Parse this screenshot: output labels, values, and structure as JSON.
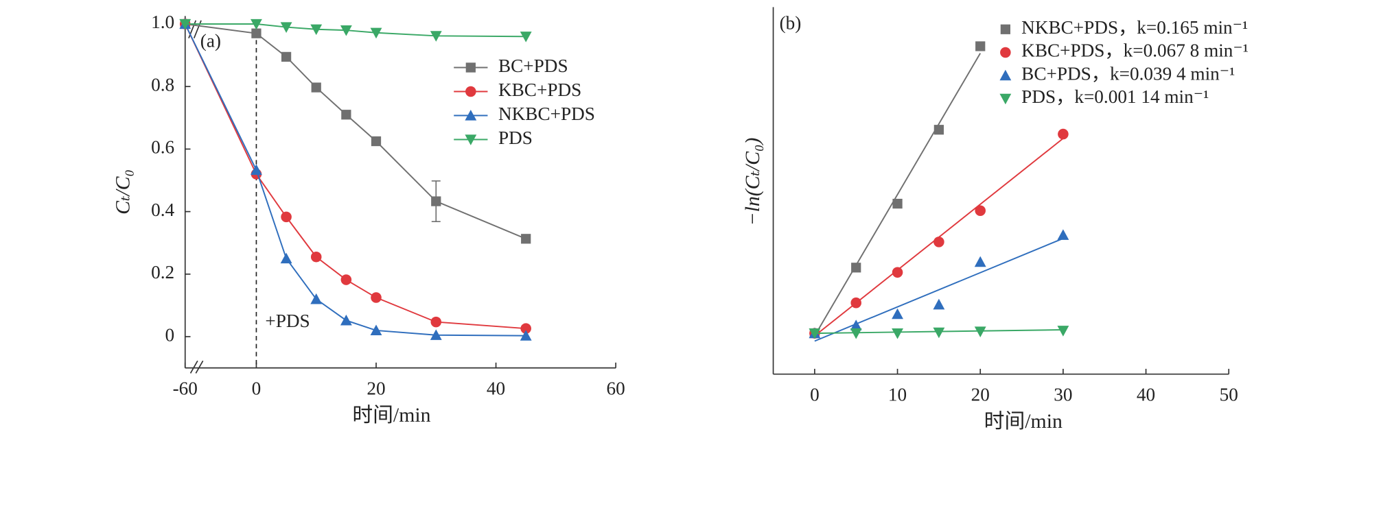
{
  "chart_data": [
    {
      "type": "line",
      "x_axis_label": "时间/min",
      "y_axis_label": "Cₜ/C₀",
      "annotations": [
        "(a)",
        "+PDS"
      ],
      "reference_line_x": 0,
      "x_axis_break": true,
      "xlim": [
        -60,
        60
      ],
      "xticks": [
        -60,
        0,
        20,
        40,
        60
      ],
      "ylim": [
        -0.1,
        1.0
      ],
      "yticks": [
        0,
        0.2,
        0.4,
        0.6,
        0.8,
        {
          "value": 1.0,
          "label": "1.0"
        }
      ],
      "x": [
        -60,
        0,
        5,
        10,
        15,
        20,
        30,
        45
      ],
      "series": [
        {
          "name": "BC+PDS",
          "color": "#707070",
          "marker": "square",
          "values": [
            1.0,
            0.97,
            0.895,
            0.797,
            0.71,
            0.625,
            0.433,
            0.313
          ],
          "errors": [
            null,
            null,
            null,
            null,
            null,
            null,
            0.065,
            null
          ]
        },
        {
          "name": "KBC+PDS",
          "color": "#e0393e",
          "marker": "circle",
          "values": [
            1.0,
            0.52,
            0.383,
            0.255,
            0.182,
            0.125,
            0.047,
            0.026
          ]
        },
        {
          "name": "NKBC+PDS",
          "color": "#2f6ebd",
          "marker": "triangle-up",
          "values": [
            1.0,
            0.533,
            0.25,
            0.12,
            0.052,
            0.02,
            0.005,
            0.003
          ]
        },
        {
          "name": "PDS",
          "color": "#3aa866",
          "marker": "triangle-down",
          "values": [
            1.0,
            1.0,
            0.99,
            0.983,
            0.98,
            0.972,
            0.962,
            0.96
          ]
        }
      ]
    },
    {
      "type": "scatter",
      "x_axis_label": "时间/min",
      "y_axis_label": "−ln(Cₜ/C₀)",
      "annotations": [
        "(b)"
      ],
      "xlim": [
        -5,
        50
      ],
      "xticks": [
        0,
        10,
        20,
        30,
        40,
        50
      ],
      "ylim": [
        -0.47,
        3.75
      ],
      "series": [
        {
          "name": "NKBC+PDS，k=0.165 min⁻¹",
          "color": "#707070",
          "marker": "square",
          "x": [
            0,
            5,
            10,
            15,
            20
          ],
          "values": [
            0,
            0.755,
            1.49,
            2.34,
            3.3
          ],
          "fit": {
            "x": [
              0,
              20
            ],
            "values": [
              -0.03,
              3.22
            ]
          }
        },
        {
          "name": "KBC+PDS，k=0.067 8 min⁻¹",
          "color": "#e0393e",
          "marker": "circle",
          "x": [
            0,
            5,
            10,
            15,
            20,
            30
          ],
          "values": [
            0,
            0.35,
            0.7,
            1.05,
            1.41,
            2.29
          ],
          "fit": {
            "x": [
              0,
              30
            ],
            "values": [
              -0.03,
              2.24
            ]
          }
        },
        {
          "name": "BC+PDS，k=0.039 4 min⁻¹",
          "color": "#2f6ebd",
          "marker": "triangle-up",
          "x": [
            0,
            5,
            10,
            15,
            20,
            30
          ],
          "values": [
            0,
            0.09,
            0.22,
            0.33,
            0.82,
            1.13
          ],
          "fit": {
            "x": [
              0,
              30
            ],
            "values": [
              -0.09,
              1.09
            ]
          }
        },
        {
          "name": "PDS，k=0.001 14 min⁻¹",
          "color": "#3aa866",
          "marker": "triangle-down",
          "x": [
            0,
            5,
            10,
            15,
            20,
            30
          ],
          "values": [
            0,
            0,
            0,
            0.01,
            0.02,
            0.03
          ],
          "fit": {
            "x": [
              0,
              30
            ],
            "values": [
              0,
              0.04
            ]
          }
        }
      ]
    }
  ]
}
